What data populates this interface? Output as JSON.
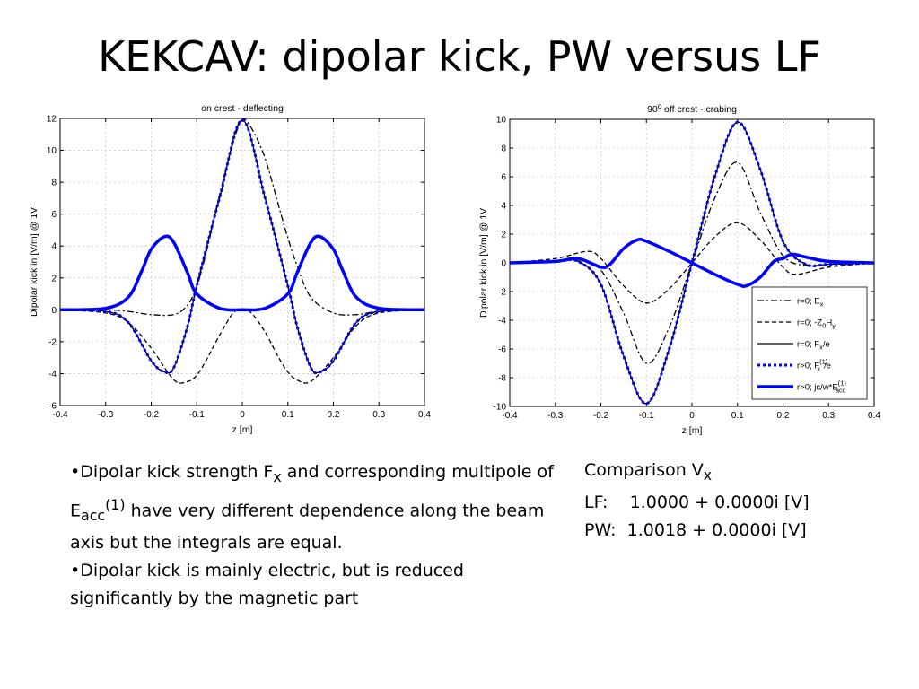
{
  "slide": {
    "title": "KEKCAV: dipolar kick, PW versus LF"
  },
  "charts_meta": [
    {
      "panel_title": "on crest - deflecting",
      "ylabel": "Dipolar kick in [V/m] @ 1V",
      "xlabel": "z [m]",
      "xticks": [
        "-0.4",
        "-0.3",
        "-0.2",
        "-0.1",
        "0",
        "0.1",
        "0.2",
        "0.3",
        "0.4"
      ],
      "yticks": [
        "-6",
        "-4",
        "-2",
        "0",
        "2",
        "4",
        "6",
        "8",
        "10",
        "12"
      ]
    },
    {
      "panel_title_pre": "90",
      "panel_title_sup": "o",
      "panel_title_post": " off crest - crabing",
      "ylabel": "Dipolar kick in [V/m] @ 1V",
      "xlabel": "z [m]",
      "xticks": [
        "-0.4",
        "-0.3",
        "-0.2",
        "-0.1",
        "0",
        "0.1",
        "0.2",
        "0.3",
        "0.4"
      ],
      "yticks": [
        "-10",
        "-8",
        "-6",
        "-4",
        "-2",
        "0",
        "2",
        "4",
        "6",
        "8",
        "10"
      ]
    }
  ],
  "chart_data": [
    {
      "type": "line",
      "title": "on crest - deflecting",
      "xlabel": "z [m]",
      "ylabel": "Dipolar kick in [V/m] @ 1V",
      "xlim": [
        -0.4,
        0.4
      ],
      "ylim": [
        -6,
        12
      ],
      "grid": true,
      "series": [
        {
          "name": "r=0; E",
          "name_sub": "x",
          "style": "dashdot",
          "color": "#000000",
          "x": [
            -0.4,
            -0.3,
            -0.25,
            -0.2,
            -0.15,
            -0.12,
            -0.1,
            -0.08,
            -0.05,
            -0.02,
            0,
            0.02,
            0.05,
            0.08,
            0.1,
            0.12,
            0.15,
            0.2,
            0.25,
            0.3,
            0.4
          ],
          "y": [
            0,
            0,
            -0.1,
            -0.3,
            -0.3,
            0.3,
            1.5,
            3.5,
            7.2,
            10.5,
            11.9,
            11.4,
            9.5,
            6.5,
            4.5,
            2.8,
            0.8,
            -0.2,
            -0.3,
            -0.1,
            0
          ]
        },
        {
          "name": "r=0; -Z",
          "name_sub": "0",
          "name_post": "H",
          "name_post_sub": "y",
          "style": "dashed",
          "color": "#000000",
          "x": [
            -0.4,
            -0.3,
            -0.25,
            -0.2,
            -0.15,
            -0.12,
            -0.1,
            -0.08,
            -0.05,
            -0.02,
            0,
            0.02,
            0.05,
            0.08,
            0.1,
            0.12,
            0.15,
            0.2,
            0.25,
            0.3,
            0.4
          ],
          "y": [
            0,
            -0.2,
            -0.8,
            -2.4,
            -4.4,
            -4.5,
            -4.1,
            -3.2,
            -1.6,
            -0.2,
            0,
            -0.2,
            -1.4,
            -3.0,
            -3.9,
            -4.4,
            -4.5,
            -3.0,
            -1.0,
            -0.2,
            0
          ]
        },
        {
          "name": "r=0; F",
          "name_sub": "x",
          "name_post": "/e",
          "style": "solid",
          "color": "#000000",
          "x": [
            -0.4,
            -0.3,
            -0.25,
            -0.2,
            -0.17,
            -0.15,
            -0.12,
            -0.1,
            -0.05,
            0,
            0.05,
            0.1,
            0.12,
            0.15,
            0.17,
            0.2,
            0.25,
            0.3,
            0.4
          ],
          "y": [
            0,
            -0.1,
            -0.8,
            -3.2,
            -3.9,
            -3.6,
            -1.0,
            1.5,
            7.0,
            11.9,
            7.0,
            1.5,
            -1.0,
            -3.6,
            -3.9,
            -3.2,
            -0.8,
            -0.1,
            0
          ]
        },
        {
          "name": "r>0; F",
          "name_sup": "(1)",
          "name_sub": "x",
          "name_post": "/e",
          "style": "dotted",
          "color": "#0000ff",
          "x": [
            -0.4,
            -0.3,
            -0.25,
            -0.2,
            -0.17,
            -0.15,
            -0.12,
            -0.1,
            -0.05,
            0,
            0.05,
            0.1,
            0.12,
            0.15,
            0.17,
            0.2,
            0.25,
            0.3,
            0.4
          ],
          "y": [
            0,
            -0.1,
            -0.8,
            -3.2,
            -3.9,
            -3.6,
            -1.0,
            1.5,
            7.0,
            11.9,
            7.0,
            1.5,
            -1.0,
            -3.6,
            -3.9,
            -3.2,
            -0.8,
            -0.1,
            0
          ]
        },
        {
          "name": "r>0; jc/w*E",
          "name_sup": "(1)",
          "name_sub": "acc",
          "style": "thick",
          "color": "#0000ff",
          "x": [
            -0.4,
            -0.3,
            -0.25,
            -0.22,
            -0.2,
            -0.17,
            -0.15,
            -0.12,
            -0.1,
            -0.05,
            0,
            0.05,
            0.1,
            0.12,
            0.15,
            0.17,
            0.2,
            0.22,
            0.25,
            0.3,
            0.4
          ],
          "y": [
            0,
            0.1,
            0.8,
            2.5,
            3.8,
            4.6,
            4.2,
            2.3,
            1.0,
            0.1,
            0,
            0.1,
            1.0,
            2.3,
            4.2,
            4.6,
            3.8,
            2.5,
            0.8,
            0.1,
            0
          ]
        }
      ]
    },
    {
      "type": "line",
      "title": "90o off crest - crabing",
      "xlabel": "z [m]",
      "ylabel": "Dipolar kick in [V/m] @ 1V",
      "xlim": [
        -0.4,
        0.4
      ],
      "ylim": [
        -10,
        10
      ],
      "grid": true,
      "legend_position": "bottom-right",
      "series": [
        {
          "name": "r=0; E",
          "name_sub": "x",
          "style": "dashdot",
          "color": "#000000",
          "x": [
            -0.4,
            -0.3,
            -0.25,
            -0.2,
            -0.15,
            -0.1,
            -0.05,
            0,
            0.05,
            0.1,
            0.15,
            0.2,
            0.25,
            0.3,
            0.4
          ],
          "y": [
            0,
            0.1,
            0.2,
            -0.5,
            -3.5,
            -7.0,
            -4.5,
            0,
            4.5,
            7.0,
            3.5,
            0.5,
            -0.2,
            -0.1,
            0
          ]
        },
        {
          "name": "r=0; -Z",
          "name_sub": "0",
          "name_post": "H",
          "name_post_sub": "y",
          "style": "dashed",
          "color": "#000000",
          "x": [
            -0.4,
            -0.3,
            -0.23,
            -0.2,
            -0.15,
            -0.1,
            -0.05,
            0,
            0.05,
            0.1,
            0.15,
            0.2,
            0.23,
            0.3,
            0.4
          ],
          "y": [
            0,
            0.3,
            0.8,
            0.3,
            -1.6,
            -2.8,
            -1.8,
            0,
            1.8,
            2.8,
            1.6,
            -0.3,
            -0.8,
            -0.3,
            0
          ]
        },
        {
          "name": "r=0; F",
          "name_sub": "x",
          "name_post": "/e",
          "style": "solid",
          "color": "#000000",
          "x": [
            -0.4,
            -0.3,
            -0.25,
            -0.2,
            -0.15,
            -0.1,
            -0.05,
            0,
            0.05,
            0.1,
            0.15,
            0.2,
            0.25,
            0.3,
            0.4
          ],
          "y": [
            0,
            0.1,
            0.1,
            -1.5,
            -6.5,
            -9.8,
            -6.0,
            0,
            6.0,
            9.8,
            6.5,
            1.5,
            -0.1,
            -0.1,
            0
          ]
        },
        {
          "name": "r>0; F",
          "name_sup": "(1)",
          "name_sub": "x",
          "name_post": "/e",
          "style": "dotted",
          "color": "#0000ff",
          "x": [
            -0.4,
            -0.3,
            -0.25,
            -0.2,
            -0.15,
            -0.1,
            -0.05,
            0,
            0.05,
            0.1,
            0.15,
            0.2,
            0.25,
            0.3,
            0.4
          ],
          "y": [
            0,
            0.1,
            0.1,
            -1.5,
            -6.5,
            -9.8,
            -6.0,
            0,
            6.0,
            9.8,
            6.5,
            1.5,
            -0.1,
            -0.1,
            0
          ]
        },
        {
          "name": "r>0; jc/w*E",
          "name_sup": "(1)",
          "name_sub": "acc",
          "style": "thick",
          "color": "#0000ff",
          "x": [
            -0.4,
            -0.3,
            -0.25,
            -0.2,
            -0.18,
            -0.15,
            -0.12,
            -0.1,
            -0.05,
            0,
            0.05,
            0.1,
            0.12,
            0.15,
            0.18,
            0.2,
            0.22,
            0.25,
            0.3,
            0.4
          ],
          "y": [
            0,
            0.1,
            0.3,
            -0.3,
            -0.1,
            1.0,
            1.6,
            1.5,
            0.8,
            0,
            -0.8,
            -1.5,
            -1.6,
            -1.0,
            0.1,
            0.3,
            0.6,
            0.4,
            0.1,
            0
          ]
        }
      ]
    }
  ],
  "bullets": [
    {
      "pre": "•Dipolar kick strength F",
      "sub1": "x",
      "mid": " and corresponding multipole of E",
      "sub2": "acc",
      "sup": "(1)",
      "post": " have very different dependence along the beam axis but the integrals are equal."
    },
    {
      "text": "•Dipolar kick is mainly electric, but is reduced significantly by the magnetic part"
    }
  ],
  "comparison": {
    "heading": "Comparison V",
    "heading_sub": "x",
    "lf": "LF:    1.0000 + 0.0000i [V]",
    "pw": "PW:  1.0018 + 0.0000i [V]"
  }
}
